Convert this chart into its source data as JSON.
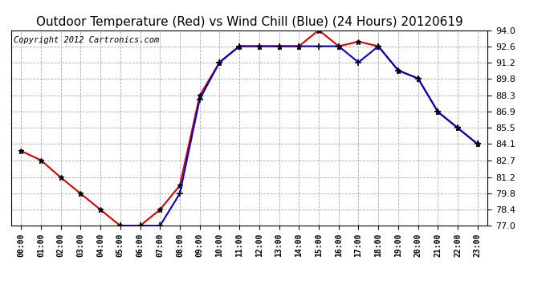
{
  "title": "Outdoor Temperature (Red) vs Wind Chill (Blue) (24 Hours) 20120619",
  "copyright": "Copyright 2012 Cartronics.com",
  "x_labels": [
    "00:00",
    "01:00",
    "02:00",
    "03:00",
    "04:00",
    "05:00",
    "06:00",
    "07:00",
    "08:00",
    "09:00",
    "10:00",
    "11:00",
    "12:00",
    "13:00",
    "14:00",
    "15:00",
    "16:00",
    "17:00",
    "18:00",
    "19:00",
    "20:00",
    "21:00",
    "22:00",
    "23:00"
  ],
  "temp_red": [
    83.5,
    82.7,
    81.2,
    79.8,
    78.4,
    77.0,
    77.0,
    78.4,
    80.5,
    88.3,
    91.2,
    92.6,
    92.6,
    92.6,
    92.6,
    94.0,
    92.6,
    93.0,
    92.6,
    90.5,
    89.8,
    86.9,
    85.5,
    84.1
  ],
  "wind_chill_blue": [
    null,
    null,
    null,
    null,
    null,
    77.0,
    77.0,
    77.0,
    79.8,
    88.0,
    91.2,
    92.6,
    92.6,
    92.6,
    92.6,
    92.6,
    92.6,
    91.2,
    92.6,
    90.5,
    89.8,
    86.9,
    85.5,
    84.1
  ],
  "ylim": [
    77.0,
    94.0
  ],
  "yticks": [
    77.0,
    78.4,
    79.8,
    81.2,
    82.7,
    84.1,
    85.5,
    86.9,
    88.3,
    89.8,
    91.2,
    92.6,
    94.0
  ],
  "red_color": "#dd0000",
  "blue_color": "#0000cc",
  "bg_color": "#ffffff",
  "grid_color": "#aaaaaa",
  "title_fontsize": 11,
  "copyright_fontsize": 7.5
}
